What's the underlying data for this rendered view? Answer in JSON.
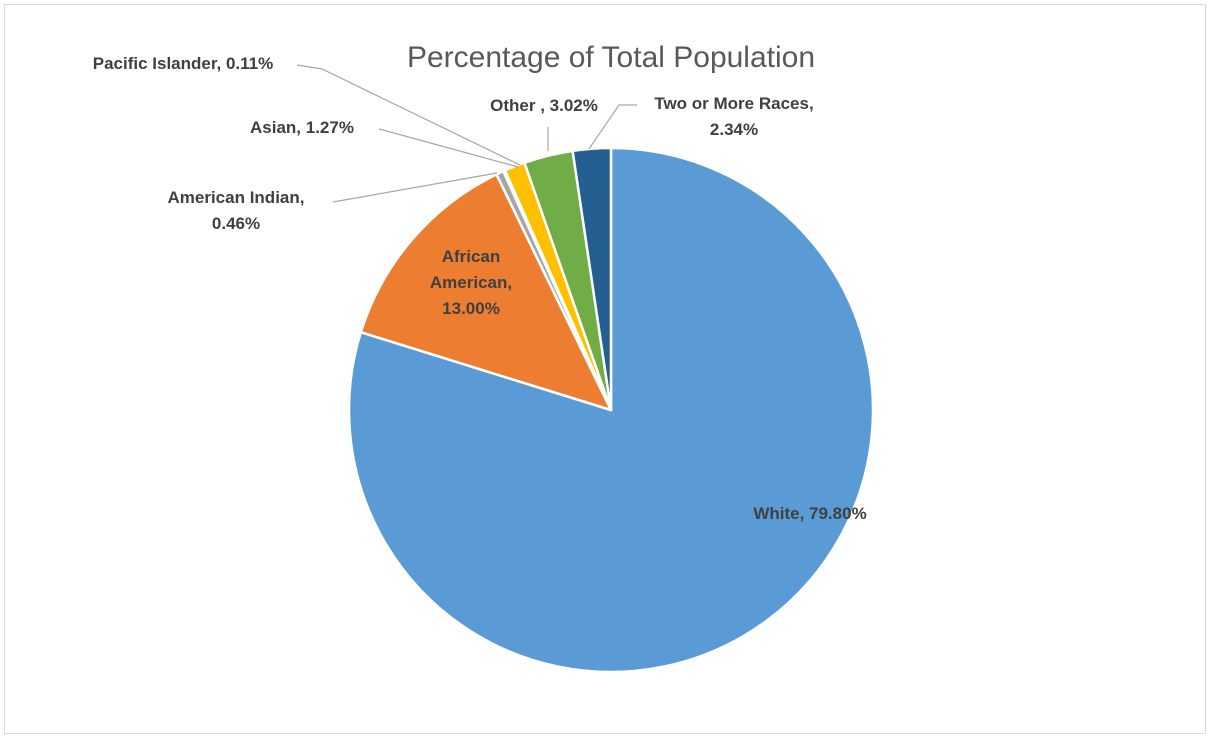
{
  "chart_data": {
    "type": "pie",
    "title": "Percentage of Total Population",
    "slices": [
      {
        "name": "White",
        "value": 79.8,
        "label_lines": [
          "White, 79.80%"
        ],
        "color": "#5b9bd5"
      },
      {
        "name": "African American",
        "value": 13.0,
        "label_lines": [
          "African",
          "American,",
          "13.00%"
        ],
        "color": "#ed7d31"
      },
      {
        "name": "American Indian",
        "value": 0.46,
        "label_lines": [
          "American Indian,",
          "0.46%"
        ],
        "color": "#a5a5a5"
      },
      {
        "name": "Pacific Islander",
        "value": 0.11,
        "label_lines": [
          "Pacific Islander, 0.11%"
        ],
        "color": "#4472c4"
      },
      {
        "name": "Asian",
        "value": 1.27,
        "label_lines": [
          "Asian, 1.27%"
        ],
        "color": "#ffc000"
      },
      {
        "name": "Other",
        "value": 3.02,
        "label_lines": [
          "Other , 3.02%"
        ],
        "color": "#70ad47"
      },
      {
        "name": "Two or More Races",
        "value": 2.34,
        "label_lines": [
          "Two or More Races,",
          "2.34%"
        ],
        "color": "#255e91"
      }
    ],
    "start_angle_deg": 0,
    "direction": "clockwise",
    "legend": "none"
  }
}
